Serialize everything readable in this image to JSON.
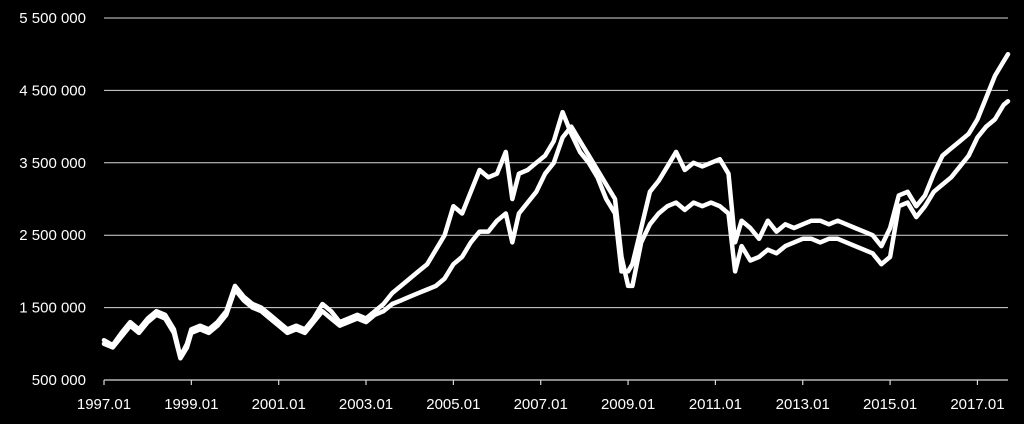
{
  "chart_data": {
    "type": "line",
    "title": "",
    "xlabel": "",
    "ylabel": "",
    "xlim": [
      1997.0,
      2017.7
    ],
    "ylim": [
      500000,
      5500000
    ],
    "grid": true,
    "colors": {
      "background": "#000000",
      "lines": "#ffffff",
      "grid": "#d9d9d9",
      "text": "#ffffff"
    },
    "y_ticks": [
      {
        "value": 500000,
        "label": "500 000"
      },
      {
        "value": 1500000,
        "label": "1 500 000"
      },
      {
        "value": 2500000,
        "label": "2 500 000"
      },
      {
        "value": 3500000,
        "label": "3 500 000"
      },
      {
        "value": 4500000,
        "label": "4 500 000"
      },
      {
        "value": 5500000,
        "label": "5 500 000"
      }
    ],
    "x_ticks": [
      {
        "value": 1997.0,
        "label": "1997.01"
      },
      {
        "value": 1999.0,
        "label": "1999.01"
      },
      {
        "value": 2001.0,
        "label": "2001.01"
      },
      {
        "value": 2003.0,
        "label": "2003.01"
      },
      {
        "value": 2005.0,
        "label": "2005.01"
      },
      {
        "value": 2007.0,
        "label": "2007.01"
      },
      {
        "value": 2009.0,
        "label": "2009.01"
      },
      {
        "value": 2011.0,
        "label": "2011.01"
      },
      {
        "value": 2013.0,
        "label": "2013.01"
      },
      {
        "value": 2015.0,
        "label": "2015.01"
      },
      {
        "value": 2017.0,
        "label": "2017.01"
      }
    ],
    "series": [
      {
        "x": [
          1997.0,
          1997.2,
          1997.4,
          1997.6,
          1997.8,
          1998.0,
          1998.2,
          1998.4,
          1998.6,
          1998.75,
          1998.9,
          1999.0,
          1999.2,
          1999.4,
          1999.6,
          1999.8,
          2000.0,
          2000.2,
          2000.4,
          2000.6,
          2000.8,
          2001.0,
          2001.2,
          2001.4,
          2001.6,
          2001.8,
          2002.0,
          2002.2,
          2002.4,
          2002.6,
          2002.8,
          2003.0,
          2003.2,
          2003.4,
          2003.6,
          2003.8,
          2004.0,
          2004.2,
          2004.4,
          2004.6,
          2004.8,
          2005.0,
          2005.2,
          2005.4,
          2005.6,
          2005.8,
          2006.0,
          2006.2,
          2006.35,
          2006.5,
          2006.7,
          2006.9,
          2007.1,
          2007.3,
          2007.5,
          2007.7,
          2007.9,
          2008.1,
          2008.3,
          2008.5,
          2008.7,
          2008.85,
          2009.0,
          2009.1,
          2009.3,
          2009.5,
          2009.7,
          2009.9,
          2010.1,
          2010.3,
          2010.5,
          2010.7,
          2010.9,
          2011.1,
          2011.3,
          2011.45,
          2011.6,
          2011.8,
          2012.0,
          2012.2,
          2012.4,
          2012.6,
          2012.8,
          2013.0,
          2013.2,
          2013.4,
          2013.6,
          2013.8,
          2014.0,
          2014.2,
          2014.4,
          2014.6,
          2014.8,
          2015.0,
          2015.2,
          2015.4,
          2015.6,
          2015.8,
          2016.0,
          2016.2,
          2016.4,
          2016.6,
          2016.8,
          2017.0,
          2017.2,
          2017.4,
          2017.6,
          2017.7
        ],
        "y": [
          1050000,
          980000,
          1150000,
          1300000,
          1200000,
          1350000,
          1450000,
          1400000,
          1200000,
          820000,
          1000000,
          1200000,
          1250000,
          1200000,
          1300000,
          1450000,
          1800000,
          1650000,
          1550000,
          1500000,
          1400000,
          1300000,
          1200000,
          1250000,
          1200000,
          1350000,
          1550000,
          1450000,
          1300000,
          1350000,
          1400000,
          1350000,
          1450000,
          1550000,
          1700000,
          1800000,
          1900000,
          2000000,
          2100000,
          2300000,
          2500000,
          2900000,
          2800000,
          3100000,
          3400000,
          3300000,
          3350000,
          3650000,
          3000000,
          3350000,
          3400000,
          3500000,
          3600000,
          3800000,
          4200000,
          3900000,
          3650000,
          3500000,
          3300000,
          3000000,
          2800000,
          2000000,
          2000000,
          2100000,
          2600000,
          3100000,
          3250000,
          3450000,
          3650000,
          3400000,
          3500000,
          3450000,
          3500000,
          3550000,
          3350000,
          2400000,
          2700000,
          2600000,
          2450000,
          2700000,
          2550000,
          2650000,
          2600000,
          2650000,
          2700000,
          2700000,
          2650000,
          2700000,
          2650000,
          2600000,
          2550000,
          2500000,
          2350000,
          2600000,
          3050000,
          3100000,
          2900000,
          3050000,
          3350000,
          3600000,
          3700000,
          3800000,
          3900000,
          4100000,
          4400000,
          4700000,
          4900000,
          5000000
        ]
      },
      {
        "x": [
          1997.0,
          1997.2,
          1997.4,
          1997.6,
          1997.8,
          1998.0,
          1998.2,
          1998.4,
          1998.6,
          1998.75,
          1998.9,
          1999.0,
          1999.2,
          1999.4,
          1999.6,
          1999.8,
          2000.0,
          2000.2,
          2000.4,
          2000.6,
          2000.8,
          2001.0,
          2001.2,
          2001.4,
          2001.6,
          2001.8,
          2002.0,
          2002.2,
          2002.4,
          2002.6,
          2002.8,
          2003.0,
          2003.2,
          2003.4,
          2003.6,
          2003.8,
          2004.0,
          2004.2,
          2004.4,
          2004.6,
          2004.8,
          2005.0,
          2005.2,
          2005.4,
          2005.6,
          2005.8,
          2006.0,
          2006.2,
          2006.35,
          2006.5,
          2006.7,
          2006.9,
          2007.1,
          2007.3,
          2007.5,
          2007.7,
          2007.9,
          2008.1,
          2008.3,
          2008.5,
          2008.7,
          2008.85,
          2009.0,
          2009.1,
          2009.3,
          2009.5,
          2009.7,
          2009.9,
          2010.1,
          2010.3,
          2010.5,
          2010.7,
          2010.9,
          2011.1,
          2011.3,
          2011.45,
          2011.6,
          2011.8,
          2012.0,
          2012.2,
          2012.4,
          2012.6,
          2012.8,
          2013.0,
          2013.2,
          2013.4,
          2013.6,
          2013.8,
          2014.0,
          2014.2,
          2014.4,
          2014.6,
          2014.8,
          2015.0,
          2015.2,
          2015.4,
          2015.6,
          2015.8,
          2016.0,
          2016.2,
          2016.4,
          2016.6,
          2016.8,
          2017.0,
          2017.2,
          2017.4,
          2017.6,
          2017.7
        ],
        "y": [
          1000000,
          950000,
          1100000,
          1250000,
          1150000,
          1300000,
          1400000,
          1350000,
          1150000,
          800000,
          950000,
          1150000,
          1200000,
          1150000,
          1250000,
          1400000,
          1750000,
          1600000,
          1500000,
          1450000,
          1350000,
          1250000,
          1150000,
          1200000,
          1150000,
          1300000,
          1450000,
          1350000,
          1250000,
          1300000,
          1350000,
          1300000,
          1400000,
          1450000,
          1550000,
          1600000,
          1650000,
          1700000,
          1750000,
          1800000,
          1900000,
          2100000,
          2200000,
          2400000,
          2550000,
          2550000,
          2700000,
          2800000,
          2400000,
          2800000,
          2950000,
          3100000,
          3350000,
          3500000,
          3850000,
          4000000,
          3800000,
          3600000,
          3400000,
          3200000,
          3000000,
          2200000,
          1800000,
          1800000,
          2400000,
          2650000,
          2800000,
          2900000,
          2950000,
          2850000,
          2950000,
          2900000,
          2950000,
          2900000,
          2800000,
          2000000,
          2350000,
          2150000,
          2200000,
          2300000,
          2250000,
          2350000,
          2400000,
          2450000,
          2450000,
          2400000,
          2450000,
          2450000,
          2400000,
          2350000,
          2300000,
          2250000,
          2100000,
          2200000,
          2900000,
          2950000,
          2750000,
          2900000,
          3100000,
          3200000,
          3300000,
          3450000,
          3600000,
          3850000,
          4000000,
          4100000,
          4300000,
          4350000
        ]
      }
    ]
  }
}
